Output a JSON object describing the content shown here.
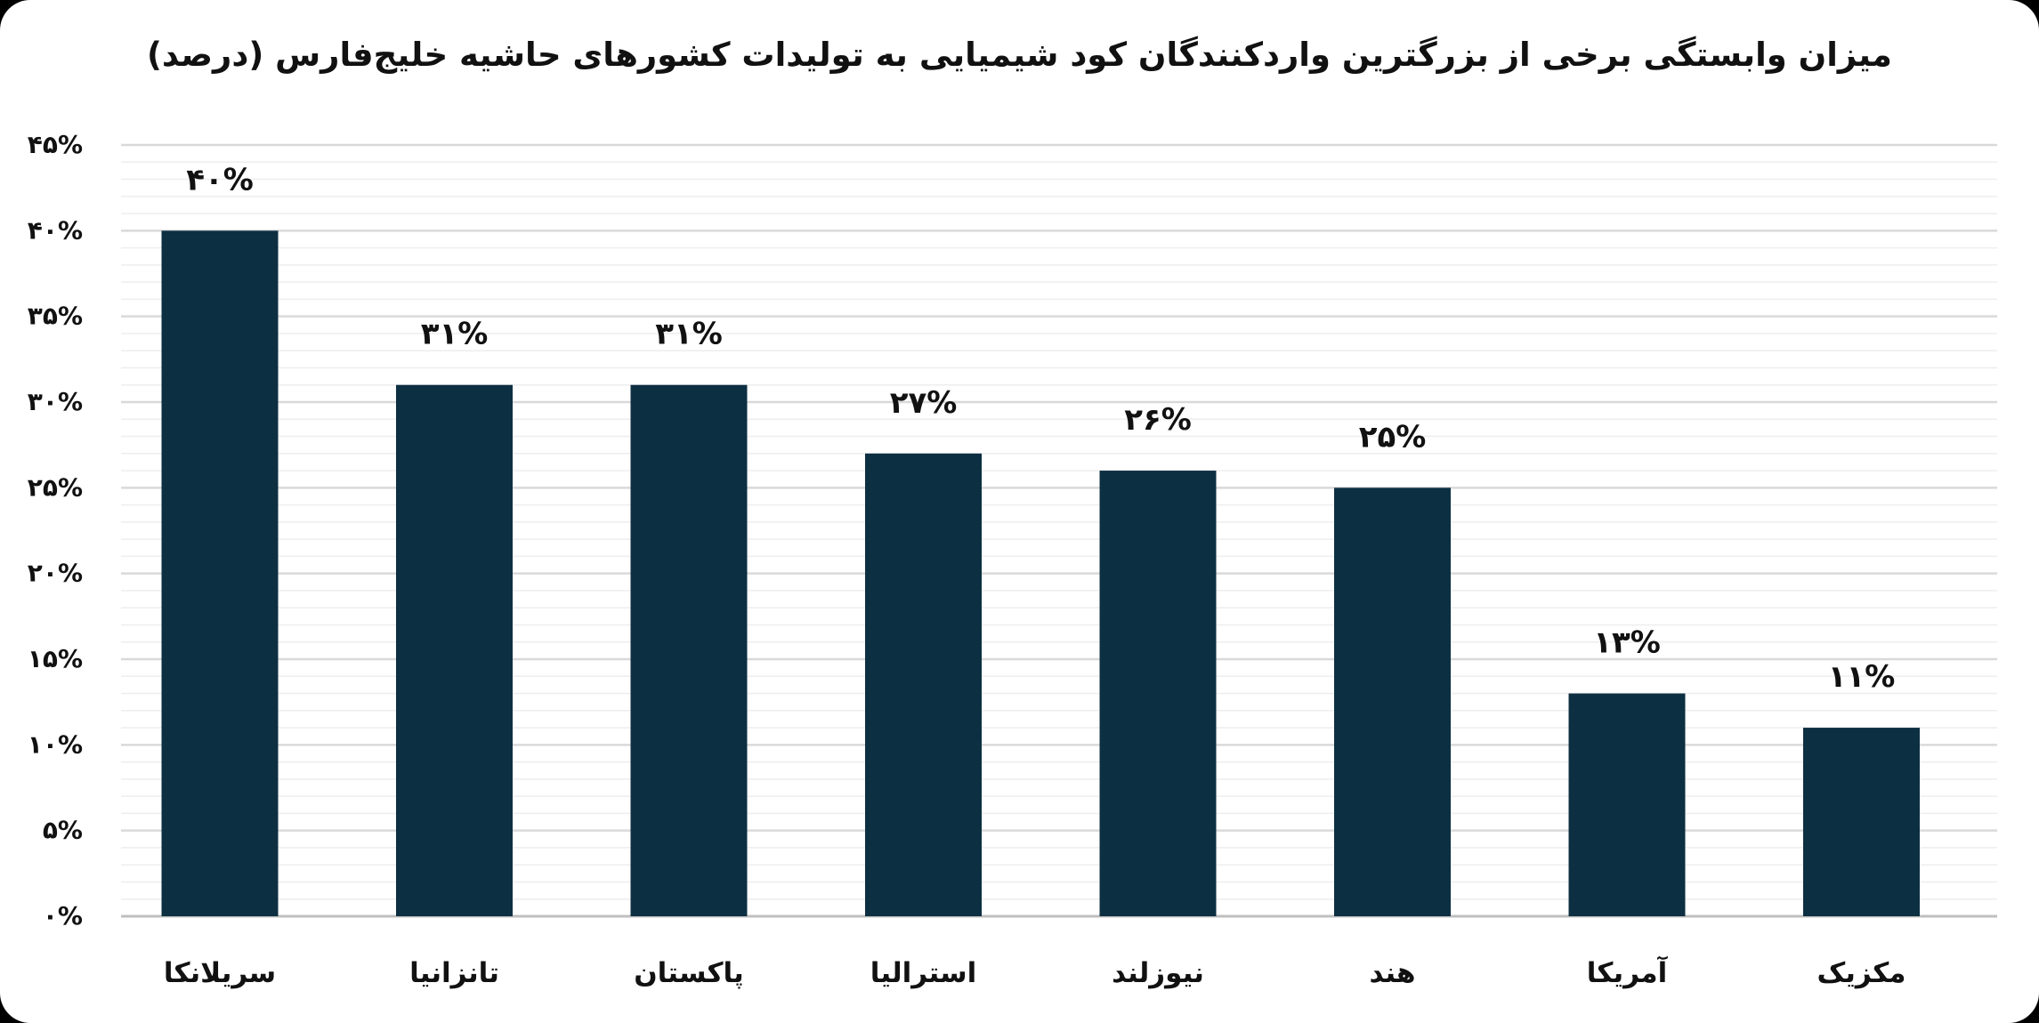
{
  "chart_data": {
    "type": "bar",
    "title": "میزان وابستگی برخی از بزرگترین واردکنندگان کود شیمیایی به تولیدات کشورهای حاشیه خلیج‌فارس (درصد)",
    "xlabel": "",
    "ylabel": "",
    "categories": [
      "سریلانکا",
      "تانزانیا",
      "پاکستان",
      "استرالیا",
      "نیوزلند",
      "هند",
      "آمریکا",
      "مکزیک"
    ],
    "values": [
      40,
      31,
      31,
      27,
      26,
      25,
      13,
      11
    ],
    "value_labels": [
      "۴۰%",
      "۳۱%",
      "۳۱%",
      "۲۷%",
      "۲۶%",
      "۲۵%",
      "۱۳%",
      "۱۱%"
    ],
    "ylim": [
      0,
      45
    ],
    "yticks": [
      0,
      5,
      10,
      15,
      20,
      25,
      30,
      35,
      40,
      45
    ],
    "ytick_labels": [
      "۰%",
      "۵%",
      "۱۰%",
      "۱۵%",
      "۲۰%",
      "۲۵%",
      "۳۰%",
      "۳۵%",
      "۴۰%",
      "۴۵%"
    ],
    "grid": true,
    "legend": "none",
    "colors": {
      "bar": "#0d2f42",
      "major_grid": "#d9d9d9",
      "minor_grid": "#eeeeee",
      "text": "#111111"
    }
  }
}
